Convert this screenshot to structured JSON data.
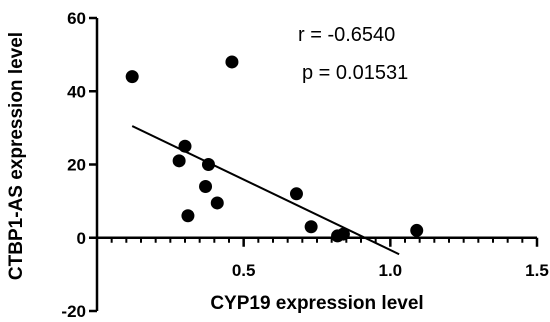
{
  "chart_data": {
    "type": "scatter",
    "xlabel": "CYP19 expression level",
    "ylabel": "CTBP1-AS expression level",
    "xlim": [
      0,
      1.5
    ],
    "ylim": [
      -20,
      60
    ],
    "x_ticks": [
      {
        "value": 0.5,
        "label": "0.5"
      },
      {
        "value": 1.0,
        "label": "1.0"
      },
      {
        "value": 1.5,
        "label": "1.5"
      }
    ],
    "x_minor_step": 0.05,
    "y_ticks": [
      {
        "value": -20,
        "label": "-20"
      },
      {
        "value": 0,
        "label": "0"
      },
      {
        "value": 20,
        "label": "20"
      },
      {
        "value": 40,
        "label": "40"
      },
      {
        "value": 60,
        "label": "60"
      }
    ],
    "points": [
      {
        "x": 0.12,
        "y": 44
      },
      {
        "x": 0.46,
        "y": 48
      },
      {
        "x": 0.3,
        "y": 25
      },
      {
        "x": 0.28,
        "y": 21
      },
      {
        "x": 0.38,
        "y": 20
      },
      {
        "x": 0.37,
        "y": 14
      },
      {
        "x": 0.41,
        "y": 9.5
      },
      {
        "x": 0.31,
        "y": 6
      },
      {
        "x": 0.68,
        "y": 12
      },
      {
        "x": 0.73,
        "y": 3
      },
      {
        "x": 0.82,
        "y": 0.5
      },
      {
        "x": 0.84,
        "y": 1
      },
      {
        "x": 1.09,
        "y": 2
      }
    ],
    "regression_line": {
      "x": [
        0.12,
        1.03
      ],
      "y": [
        30.5,
        -4.5
      ]
    },
    "annotations": {
      "r": "r = -0.6540",
      "p": "p = 0.01531"
    },
    "grid": false,
    "legend": "none"
  }
}
